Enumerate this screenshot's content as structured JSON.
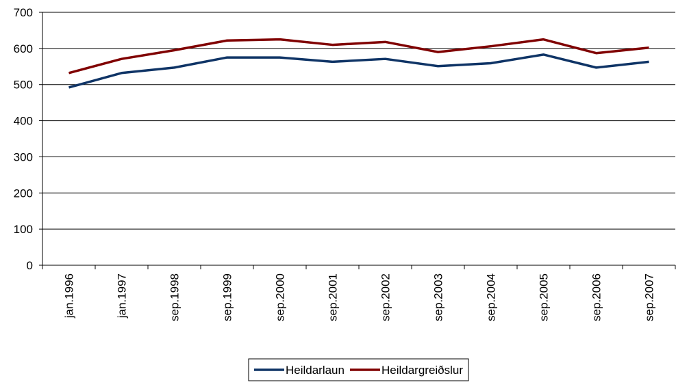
{
  "chart_data": {
    "type": "line",
    "categories": [
      "jan.1996",
      "jan.1997",
      "sep.1998",
      "sep.1999",
      "sep.2000",
      "sep.2001",
      "sep.2002",
      "sep.2003",
      "sep.2004",
      "sep.2005",
      "sep.2006",
      "sep.2007"
    ],
    "series": [
      {
        "name": "Heildarlaun",
        "color": "#0f3466",
        "values": [
          492,
          532,
          547,
          575,
          575,
          563,
          571,
          551,
          559,
          583,
          547,
          563
        ]
      },
      {
        "name": "Heildargreiðslur",
        "color": "#800000",
        "values": [
          532,
          571,
          595,
          622,
          625,
          610,
          618,
          590,
          606,
          625,
          587,
          602
        ]
      }
    ],
    "ylim": [
      0,
      700
    ],
    "yticks": [
      0,
      100,
      200,
      300,
      400,
      500,
      600,
      700
    ],
    "grid": true,
    "legend": "bottom"
  }
}
